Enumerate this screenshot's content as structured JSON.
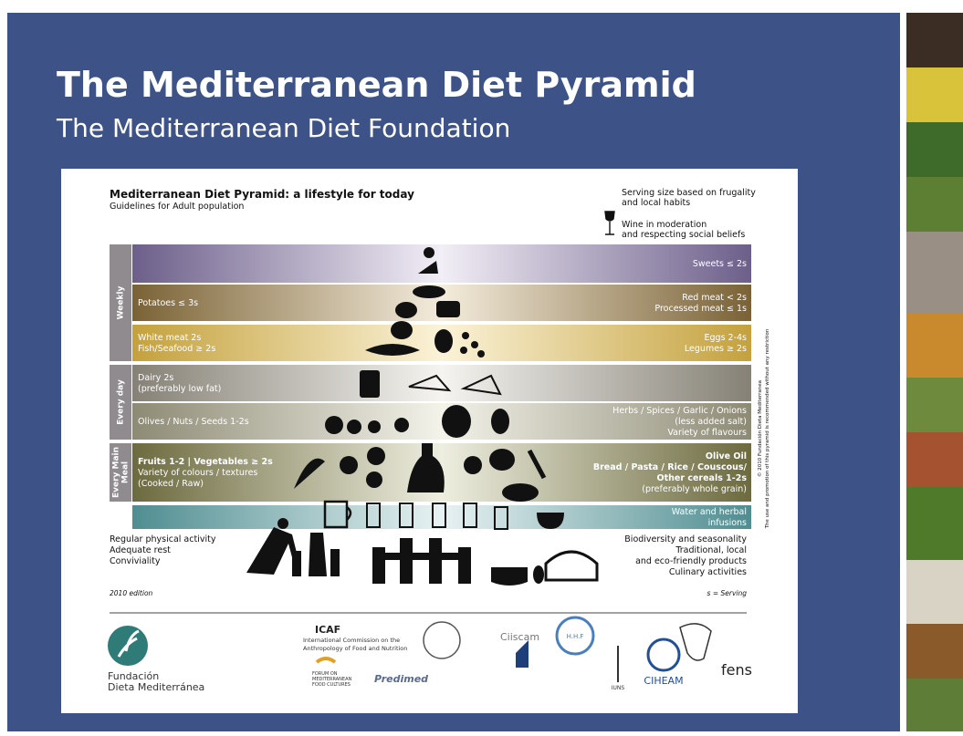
{
  "header": {
    "title": "The Mediterranean Diet Pyramid",
    "subtitle": "The Mediterranean Diet Foundation"
  },
  "pyramid": {
    "title": "Mediterranean Diet Pyramid: a lifestyle for today",
    "subtitle": "Guidelines for Adult population",
    "serving_note": [
      "Serving size based on frugality",
      "and local habits"
    ],
    "wine_note": [
      "Wine in moderation",
      "and respecting social beliefs"
    ],
    "groups": [
      [
        "Weekly"
      ],
      [
        "Every day"
      ],
      [
        "Every Main",
        "Meal"
      ]
    ],
    "bands": [
      {
        "left": [],
        "right": [
          "Sweets ≤ 2s"
        ]
      },
      {
        "left": [
          "Potatoes ≤ 3s"
        ],
        "right": [
          "Red meat < 2s",
          "Processed meat ≤ 1s"
        ]
      },
      {
        "left": [
          "White meat 2s",
          "Fish/Seafood ≥ 2s"
        ],
        "right": [
          "Eggs 2-4s",
          "Legumes ≥ 2s"
        ]
      },
      {
        "left": [
          "Dairy 2s",
          "(preferably low fat)"
        ],
        "right": []
      },
      {
        "left": [
          "Olives / Nuts / Seeds  1-2s"
        ],
        "right": [
          "Herbs / Spices / Garlic / Onions",
          "(less added salt)",
          "Variety of flavours"
        ]
      },
      {
        "left": [
          "Fruits 1-2 | Vegetables ≥ 2s",
          "Variety of colours / textures",
          "(Cooked / Raw)"
        ],
        "right": [
          "Olive Oil",
          "Bread / Pasta / Rice / Couscous/",
          "Other cereals 1-2s",
          "(preferably whole grain)"
        ]
      },
      {
        "left": [],
        "right": [
          "Water and herbal",
          "infusions"
        ]
      }
    ],
    "lifestyle_left": [
      "Regular physical activity",
      "Adequate rest",
      "Conviviality"
    ],
    "lifestyle_right": [
      "Biodiversity and seasonality",
      "Traditional, local",
      "and eco-friendly products",
      "Culinary activities"
    ],
    "edition": "2010 edition",
    "serving": "s = Serving",
    "copyright": [
      "© 2010 Fundación Dieta Mediterranea",
      "The use and promotion of this pyramid is recommended without any restriction"
    ]
  },
  "logos": {
    "foundation": [
      "Fundación",
      "Dieta Mediterránea"
    ],
    "icaf": "ICAF",
    "icaf_name": [
      "International Commission on the",
      "Anthropology of Food and Nutrition"
    ],
    "ciiscam": "Ciiscam",
    "predimed": "Predimed",
    "forum": [
      "FORUM ON",
      "MEDITERRANEAN",
      "FOOD CULTURES"
    ],
    "hhf": "H.H.F",
    "iuns": "IUNS",
    "ciheam": "CIHEAM",
    "fens": "fens"
  }
}
